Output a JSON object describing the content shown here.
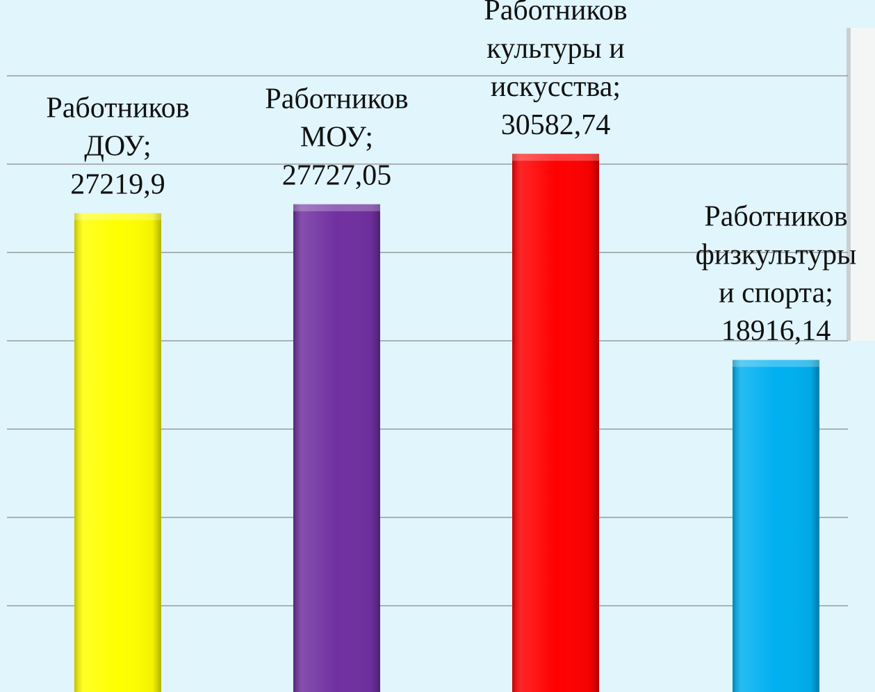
{
  "chart_data": {
    "type": "bar",
    "categories": [
      "Работников\nДОУ",
      "Работников\nМОУ",
      "Работников\nкультуры и\nискусства",
      "Работников\nфизкультуры\nи спорта"
    ],
    "label_separator": ";",
    "values": [
      27219.9,
      27727.05,
      30582.74,
      18916.14
    ],
    "value_labels": [
      "27219,9",
      "27727,05",
      "30582,74",
      "18916,14"
    ],
    "colors": [
      "#ffff00",
      "#7030a0",
      "#ff0000",
      "#00b0f0"
    ],
    "ylim": [
      0,
      35000
    ],
    "yticks": [
      5000,
      10000,
      15000,
      20000,
      25000,
      30000,
      35000
    ],
    "grid": true
  }
}
